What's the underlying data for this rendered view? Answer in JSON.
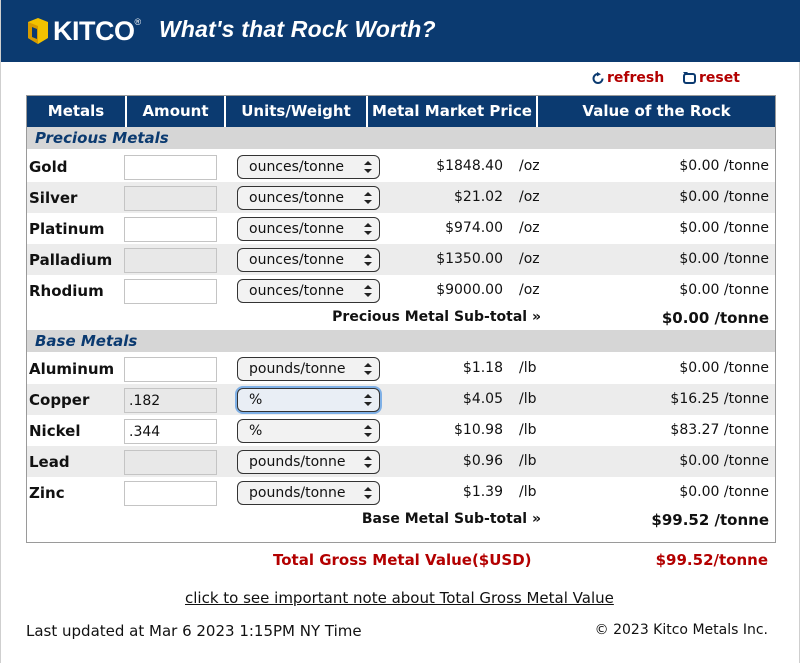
{
  "header": {
    "logo_text": "KITCO",
    "logo_reg": "®",
    "title": "What's that Rock Worth?"
  },
  "actions": {
    "refresh": "refresh",
    "reset": "reset"
  },
  "table": {
    "columns": [
      "Metals",
      "Amount",
      "Units/Weight",
      "Metal Market Price",
      "Value of the Rock"
    ],
    "precious": {
      "title": "Precious Metals",
      "rows": [
        {
          "name": "Gold",
          "amount": "",
          "unit_select": "ounces/tonne",
          "price": "$1848.40",
          "price_unit": "/oz",
          "value": "$0.00 /tonne"
        },
        {
          "name": "Silver",
          "amount": "",
          "unit_select": "ounces/tonne",
          "price": "$21.02",
          "price_unit": "/oz",
          "value": "$0.00 /tonne"
        },
        {
          "name": "Platinum",
          "amount": "",
          "unit_select": "ounces/tonne",
          "price": "$974.00",
          "price_unit": "/oz",
          "value": "$0.00 /tonne"
        },
        {
          "name": "Palladium",
          "amount": "",
          "unit_select": "ounces/tonne",
          "price": "$1350.00",
          "price_unit": "/oz",
          "value": "$0.00 /tonne"
        },
        {
          "name": "Rhodium",
          "amount": "",
          "unit_select": "ounces/tonne",
          "price": "$9000.00",
          "price_unit": "/oz",
          "value": "$0.00 /tonne"
        }
      ],
      "subtotal_label": "Precious Metal Sub-total »",
      "subtotal_value": "$0.00 /tonne"
    },
    "base": {
      "title": "Base Metals",
      "rows": [
        {
          "name": "Aluminum",
          "amount": "",
          "unit_select": "pounds/tonne",
          "price": "$1.18",
          "price_unit": "/lb",
          "value": "$0.00 /tonne"
        },
        {
          "name": "Copper",
          "amount": ".182",
          "unit_select": "%",
          "price": "$4.05",
          "price_unit": "/lb",
          "value": "$16.25 /tonne"
        },
        {
          "name": "Nickel",
          "amount": ".344",
          "unit_select": "%",
          "price": "$10.98",
          "price_unit": "/lb",
          "value": "$83.27 /tonne"
        },
        {
          "name": "Lead",
          "amount": "",
          "unit_select": "pounds/tonne",
          "price": "$0.96",
          "price_unit": "/lb",
          "value": "$0.00 /tonne"
        },
        {
          "name": "Zinc",
          "amount": "",
          "unit_select": "pounds/tonne",
          "price": "$1.39",
          "price_unit": "/lb",
          "value": "$0.00 /tonne"
        }
      ],
      "subtotal_label": "Base Metal Sub-total »",
      "subtotal_value": "$99.52 /tonne"
    }
  },
  "total": {
    "label": "Total Gross Metal Value($USD)",
    "value": "$99.52/tonne"
  },
  "footer": {
    "note_link": "click to see important note about Total Gross Metal Value",
    "updated": "Last updated at Mar 6 2023 1:15PM NY Time",
    "copyright": "© 2023 Kitco Metals Inc."
  },
  "colors": {
    "banner": "#0b3a70",
    "accent_red": "#b30000",
    "section_bg": "#d6d6d6",
    "row_alt": "#ececec"
  }
}
